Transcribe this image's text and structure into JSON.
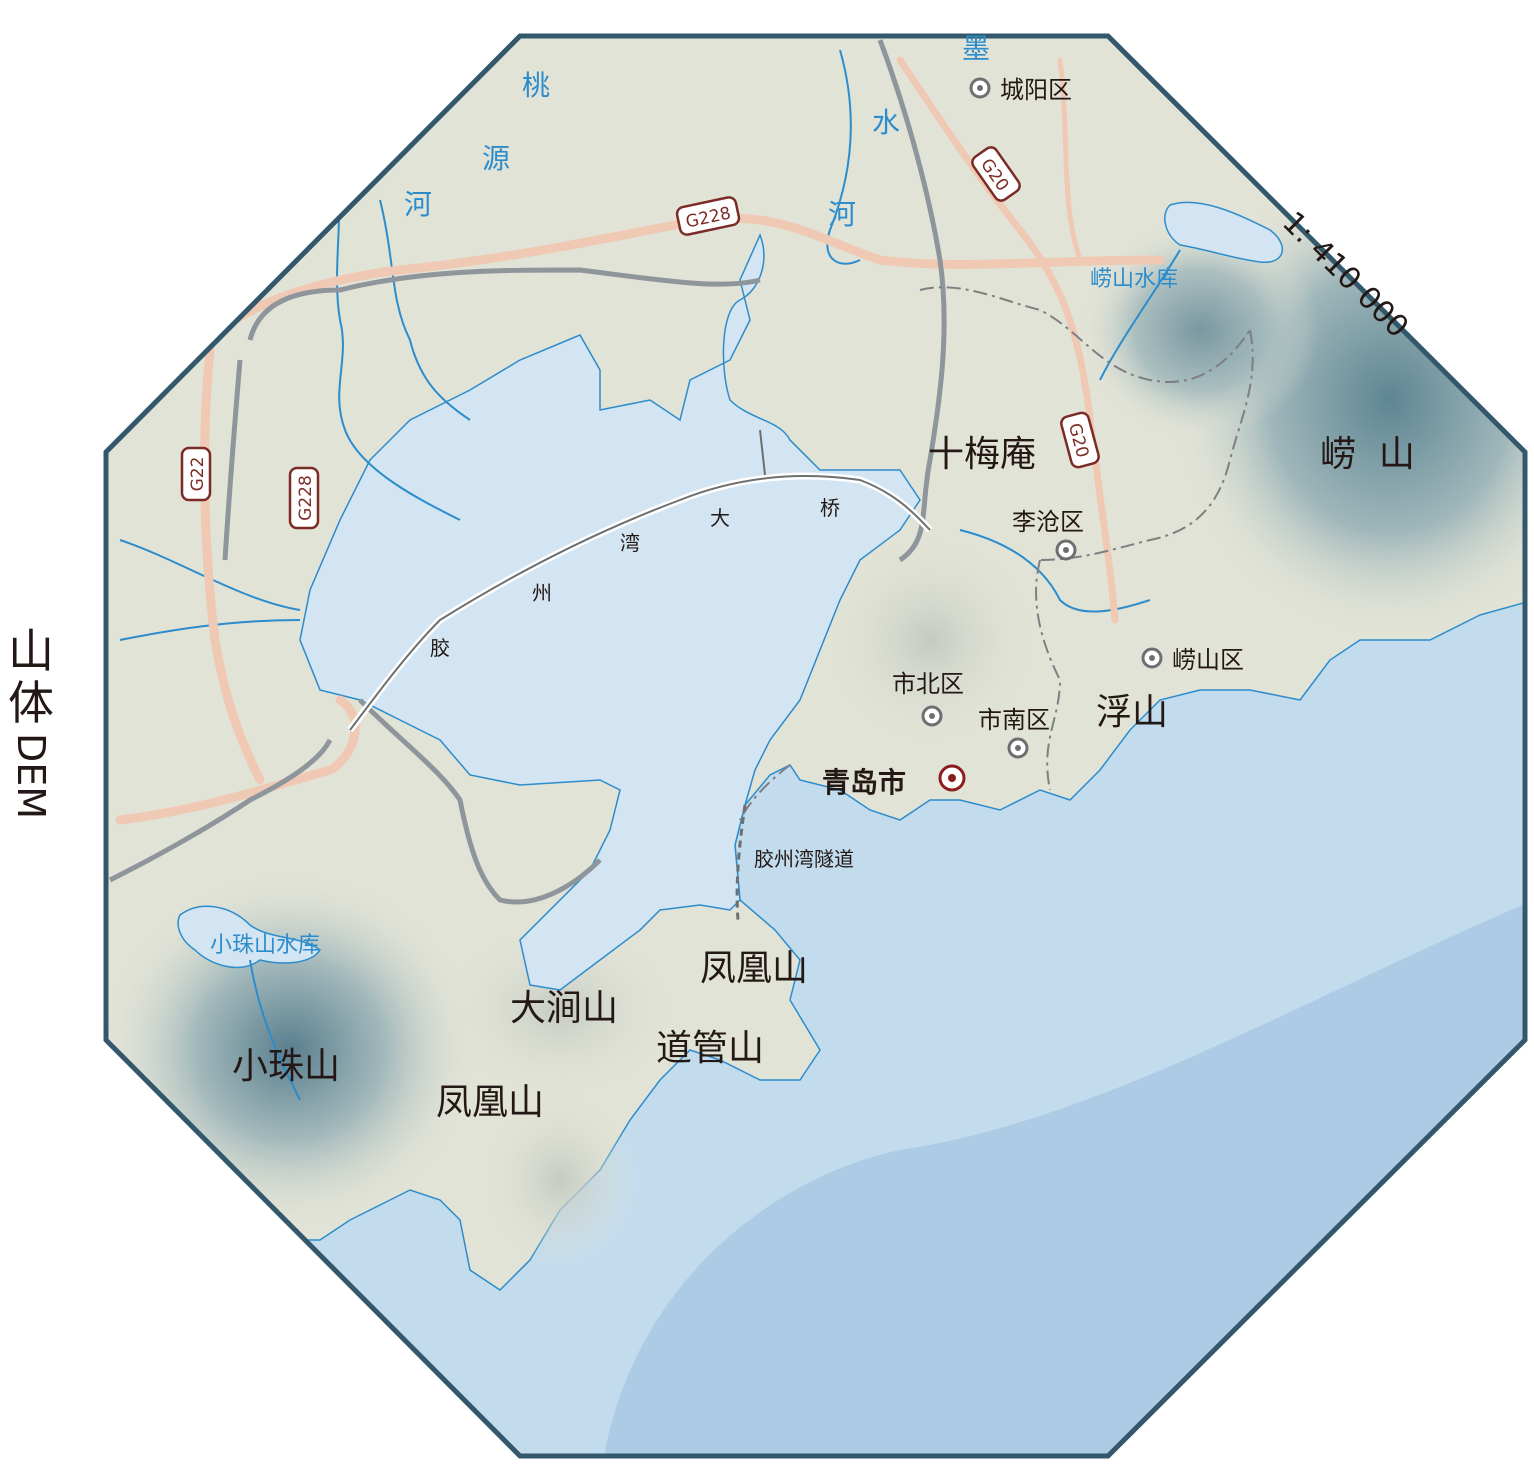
{
  "title": {
    "cn": "山体",
    "en": "DEM"
  },
  "scale": "1: 410 000",
  "places": {
    "chengyang": "城阳区",
    "licang": "李沧区",
    "shibei": "市北区",
    "shinan": "市南区",
    "laoshan_district": "崂山区",
    "qingdao": "青岛市"
  },
  "mountains": {
    "shimeian": "十梅庵",
    "laoshan": "崂  山",
    "fushan": "浮山",
    "fenghuangshan_east": "凤凰山",
    "dajianshan": "大涧山",
    "daoguanshan": "道管山",
    "xiaozhushan": "小珠山",
    "fenghuangshan_south": "凤凰山"
  },
  "water": {
    "taoyuan_1": "桃",
    "taoyuan_2": "源",
    "taoyuan_3": "河",
    "moshui_1": "墨",
    "moshui_2": "水",
    "moshui_3": "河",
    "laoshan_reservoir": "崂山水库",
    "xiaozhushan_reservoir": "小珠山水库"
  },
  "bridge": {
    "c1": "胶",
    "c2": "州",
    "c3": "湾",
    "c4": "大",
    "c5": "桥"
  },
  "tunnel": "胶州湾隧道",
  "shields": {
    "g228_top": "G228",
    "g228_left": "G228",
    "g22": "G22",
    "g20_top": "G20",
    "g20_mid": "G20"
  },
  "colors": {
    "land": "#e2e3d7",
    "bay": "#d3e4f2",
    "sea": "#c2dcee",
    "sea_deep": "#aecbe5",
    "border": "#34586b",
    "river": "#2c8ccc",
    "road": "#efc9b4",
    "rail": "#8e959b",
    "shield": "#7b2b25",
    "city_mark": "#8c1d1d"
  }
}
